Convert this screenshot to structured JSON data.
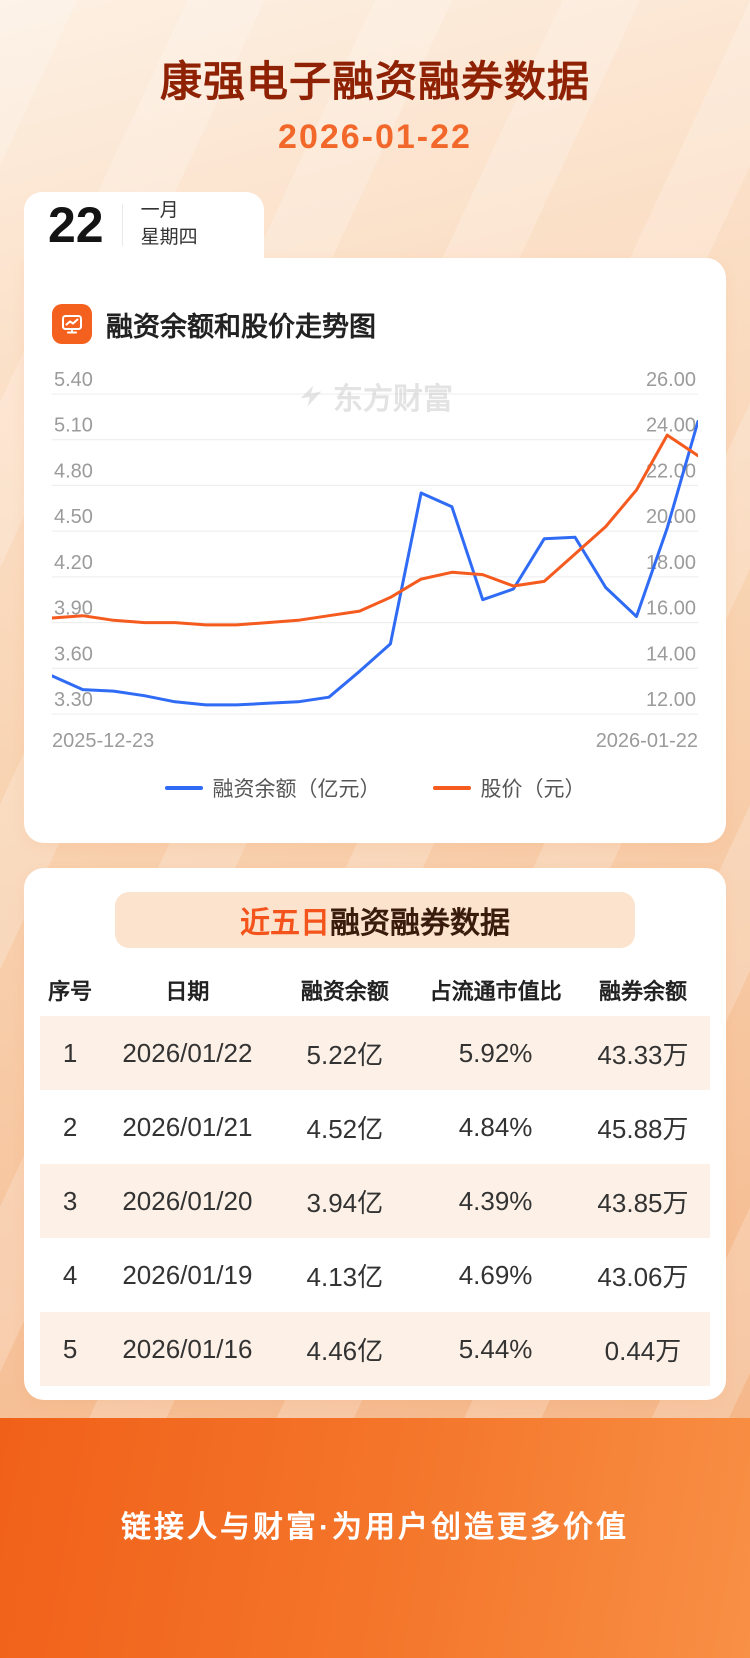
{
  "header": {
    "title": "康强电子融资融券数据",
    "date": "2026-01-22"
  },
  "date_card": {
    "day": "22",
    "month": "一月",
    "weekday": "星期四"
  },
  "chart_section": {
    "title": "融资余额和股价走势图"
  },
  "watermark": "东方财富",
  "colors": {
    "accent_orange": "#f4611e",
    "title_maroon": "#8f2104",
    "series_blue": "#2f6bf5",
    "series_orange": "#f55a1e",
    "row_stripe": "#fdf1e7",
    "badge_bg": "#fbe3cd"
  },
  "chart_data": {
    "type": "line",
    "x_range": [
      "2025-12-23",
      "2026-01-22"
    ],
    "series": [
      {
        "name": "融资余额（亿元）",
        "axis": "left",
        "color": "#2f6bf5",
        "values": [
          3.55,
          3.46,
          3.45,
          3.42,
          3.38,
          3.36,
          3.36,
          3.37,
          3.38,
          3.41,
          3.58,
          3.76,
          4.75,
          4.66,
          4.05,
          4.12,
          4.45,
          4.46,
          4.13,
          3.94,
          4.52,
          5.22
        ]
      },
      {
        "name": "股价（元）",
        "axis": "right",
        "color": "#f55a1e",
        "values": [
          16.2,
          16.3,
          16.1,
          16.0,
          16.0,
          15.9,
          15.9,
          16.0,
          16.1,
          16.3,
          16.5,
          17.1,
          17.9,
          18.2,
          18.1,
          17.6,
          17.8,
          19.0,
          20.2,
          21.8,
          24.2,
          23.3
        ]
      }
    ],
    "left_axis": {
      "min": 3.3,
      "max": 5.4,
      "ticks": [
        "5.40",
        "5.10",
        "4.80",
        "4.50",
        "4.20",
        "3.90",
        "3.60",
        "3.30"
      ]
    },
    "right_axis": {
      "min": 12.0,
      "max": 26.0,
      "ticks": [
        "26.00",
        "24.00",
        "22.00",
        "20.00",
        "18.00",
        "16.00",
        "14.00",
        "12.00"
      ]
    },
    "grid": true,
    "legend_position": "bottom"
  },
  "table_section": {
    "title": {
      "highlight": "近五日",
      "rest": "融资融券数据"
    },
    "columns": [
      "序号",
      "日期",
      "融资余额",
      "占流通市值比",
      "融券余额"
    ],
    "rows": [
      [
        "1",
        "2026/01/22",
        "5.22亿",
        "5.92%",
        "43.33万"
      ],
      [
        "2",
        "2026/01/21",
        "4.52亿",
        "4.84%",
        "45.88万"
      ],
      [
        "3",
        "2026/01/20",
        "3.94亿",
        "4.39%",
        "43.85万"
      ],
      [
        "4",
        "2026/01/19",
        "4.13亿",
        "4.69%",
        "43.06万"
      ],
      [
        "5",
        "2026/01/16",
        "4.46亿",
        "5.44%",
        "0.44万"
      ]
    ]
  },
  "footer": {
    "slogan": "链接人与财富·为用户创造更多价值"
  }
}
